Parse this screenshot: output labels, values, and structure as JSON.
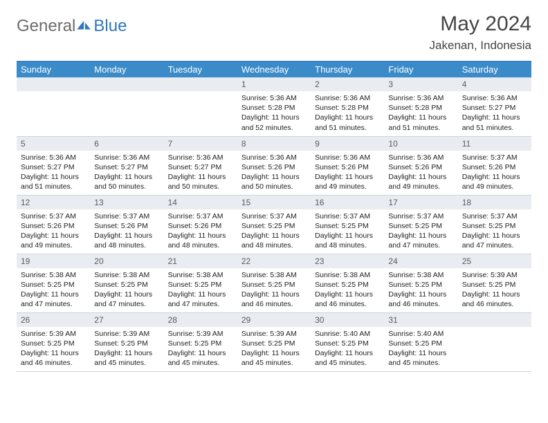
{
  "brand": {
    "part1": "General",
    "part2": "Blue"
  },
  "title": "May 2024",
  "location": "Jakenan, Indonesia",
  "colors": {
    "header_bg": "#3b8bc9",
    "accent": "#2f77bb",
    "daynum_bg": "#e9edf1",
    "grid_border": "#c9d3dc",
    "text": "#222222",
    "muted": "#6b6b6b"
  },
  "weekdays": [
    "Sunday",
    "Monday",
    "Tuesday",
    "Wednesday",
    "Thursday",
    "Friday",
    "Saturday"
  ],
  "first_weekday_index": 3,
  "days": [
    {
      "n": 1,
      "sunrise": "5:36 AM",
      "sunset": "5:28 PM",
      "daylight": "11 hours and 52 minutes."
    },
    {
      "n": 2,
      "sunrise": "5:36 AM",
      "sunset": "5:28 PM",
      "daylight": "11 hours and 51 minutes."
    },
    {
      "n": 3,
      "sunrise": "5:36 AM",
      "sunset": "5:28 PM",
      "daylight": "11 hours and 51 minutes."
    },
    {
      "n": 4,
      "sunrise": "5:36 AM",
      "sunset": "5:27 PM",
      "daylight": "11 hours and 51 minutes."
    },
    {
      "n": 5,
      "sunrise": "5:36 AM",
      "sunset": "5:27 PM",
      "daylight": "11 hours and 51 minutes."
    },
    {
      "n": 6,
      "sunrise": "5:36 AM",
      "sunset": "5:27 PM",
      "daylight": "11 hours and 50 minutes."
    },
    {
      "n": 7,
      "sunrise": "5:36 AM",
      "sunset": "5:27 PM",
      "daylight": "11 hours and 50 minutes."
    },
    {
      "n": 8,
      "sunrise": "5:36 AM",
      "sunset": "5:26 PM",
      "daylight": "11 hours and 50 minutes."
    },
    {
      "n": 9,
      "sunrise": "5:36 AM",
      "sunset": "5:26 PM",
      "daylight": "11 hours and 49 minutes."
    },
    {
      "n": 10,
      "sunrise": "5:36 AM",
      "sunset": "5:26 PM",
      "daylight": "11 hours and 49 minutes."
    },
    {
      "n": 11,
      "sunrise": "5:37 AM",
      "sunset": "5:26 PM",
      "daylight": "11 hours and 49 minutes."
    },
    {
      "n": 12,
      "sunrise": "5:37 AM",
      "sunset": "5:26 PM",
      "daylight": "11 hours and 49 minutes."
    },
    {
      "n": 13,
      "sunrise": "5:37 AM",
      "sunset": "5:26 PM",
      "daylight": "11 hours and 48 minutes."
    },
    {
      "n": 14,
      "sunrise": "5:37 AM",
      "sunset": "5:26 PM",
      "daylight": "11 hours and 48 minutes."
    },
    {
      "n": 15,
      "sunrise": "5:37 AM",
      "sunset": "5:25 PM",
      "daylight": "11 hours and 48 minutes."
    },
    {
      "n": 16,
      "sunrise": "5:37 AM",
      "sunset": "5:25 PM",
      "daylight": "11 hours and 48 minutes."
    },
    {
      "n": 17,
      "sunrise": "5:37 AM",
      "sunset": "5:25 PM",
      "daylight": "11 hours and 47 minutes."
    },
    {
      "n": 18,
      "sunrise": "5:37 AM",
      "sunset": "5:25 PM",
      "daylight": "11 hours and 47 minutes."
    },
    {
      "n": 19,
      "sunrise": "5:38 AM",
      "sunset": "5:25 PM",
      "daylight": "11 hours and 47 minutes."
    },
    {
      "n": 20,
      "sunrise": "5:38 AM",
      "sunset": "5:25 PM",
      "daylight": "11 hours and 47 minutes."
    },
    {
      "n": 21,
      "sunrise": "5:38 AM",
      "sunset": "5:25 PM",
      "daylight": "11 hours and 47 minutes."
    },
    {
      "n": 22,
      "sunrise": "5:38 AM",
      "sunset": "5:25 PM",
      "daylight": "11 hours and 46 minutes."
    },
    {
      "n": 23,
      "sunrise": "5:38 AM",
      "sunset": "5:25 PM",
      "daylight": "11 hours and 46 minutes."
    },
    {
      "n": 24,
      "sunrise": "5:38 AM",
      "sunset": "5:25 PM",
      "daylight": "11 hours and 46 minutes."
    },
    {
      "n": 25,
      "sunrise": "5:39 AM",
      "sunset": "5:25 PM",
      "daylight": "11 hours and 46 minutes."
    },
    {
      "n": 26,
      "sunrise": "5:39 AM",
      "sunset": "5:25 PM",
      "daylight": "11 hours and 46 minutes."
    },
    {
      "n": 27,
      "sunrise": "5:39 AM",
      "sunset": "5:25 PM",
      "daylight": "11 hours and 45 minutes."
    },
    {
      "n": 28,
      "sunrise": "5:39 AM",
      "sunset": "5:25 PM",
      "daylight": "11 hours and 45 minutes."
    },
    {
      "n": 29,
      "sunrise": "5:39 AM",
      "sunset": "5:25 PM",
      "daylight": "11 hours and 45 minutes."
    },
    {
      "n": 30,
      "sunrise": "5:40 AM",
      "sunset": "5:25 PM",
      "daylight": "11 hours and 45 minutes."
    },
    {
      "n": 31,
      "sunrise": "5:40 AM",
      "sunset": "5:25 PM",
      "daylight": "11 hours and 45 minutes."
    }
  ],
  "labels": {
    "sunrise": "Sunrise:",
    "sunset": "Sunset:",
    "daylight": "Daylight:"
  }
}
